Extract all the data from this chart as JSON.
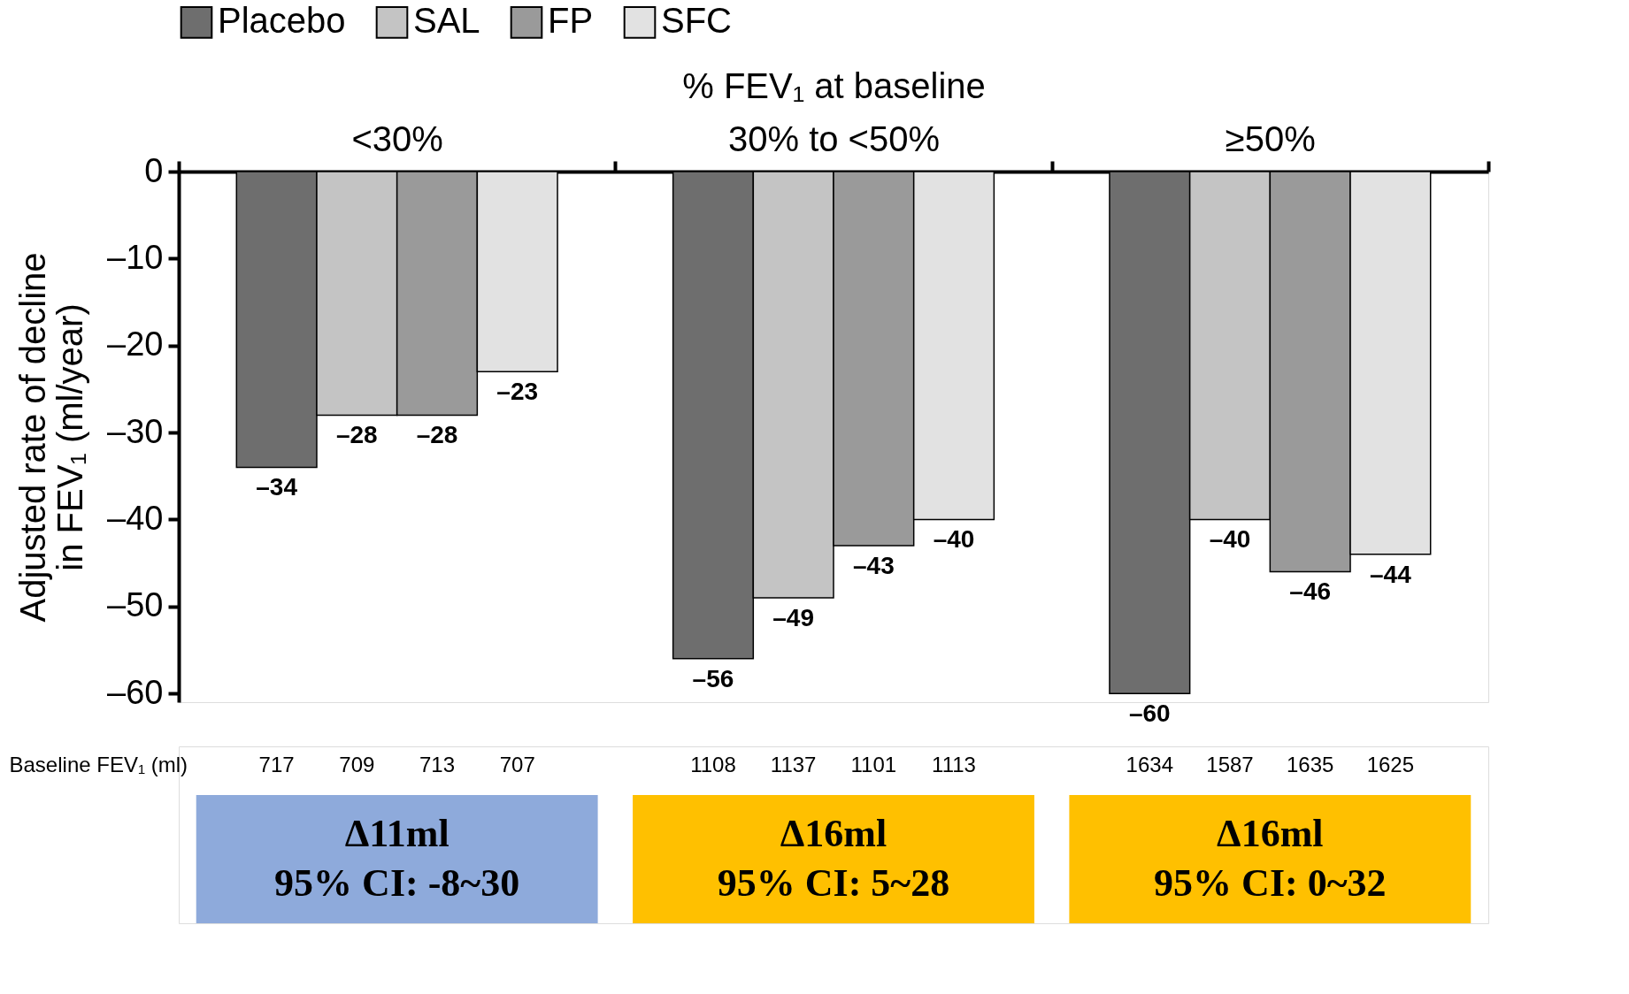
{
  "chart_data": {
    "type": "bar",
    "xlabel": "% FEV₁ at baseline",
    "ylabel": "Adjusted rate of decline in FEV₁ (ml/year)",
    "categories": [
      "<30%",
      "30% to <50%",
      "≥50%"
    ],
    "series": [
      {
        "name": "Placebo",
        "color": "#6e6e6e",
        "values": [
          -34,
          -56,
          -60
        ],
        "value_labels": [
          "–34",
          "–56",
          "–60"
        ]
      },
      {
        "name": "SAL",
        "color": "#c4c4c4",
        "values": [
          -28,
          -49,
          -40
        ],
        "value_labels": [
          "–28",
          "–49",
          "–40"
        ]
      },
      {
        "name": "FP",
        "color": "#9a9a9a",
        "values": [
          -28,
          -43,
          -46
        ],
        "value_labels": [
          "–28",
          "–43",
          "–46"
        ]
      },
      {
        "name": "SFC",
        "color": "#e2e2e2",
        "values": [
          -23,
          -40,
          -44
        ],
        "value_labels": [
          "–23",
          "–40",
          "–44"
        ]
      }
    ],
    "ylim": [
      -61,
      0
    ],
    "yticks": [
      0,
      {
        "value": -10,
        "label": "–10"
      },
      {
        "value": -20,
        "label": "–20"
      },
      {
        "value": -30,
        "label": "–30"
      },
      {
        "value": -40,
        "label": "–40"
      },
      {
        "value": -50,
        "label": "–50"
      },
      {
        "value": -60,
        "label": "–60"
      }
    ],
    "legend": "top",
    "grid": false,
    "annotations": [
      "Baseline FEV₁ (ml)",
      "717",
      "709",
      "713",
      "707",
      "1108",
      "1137",
      "1101",
      "1113",
      "1634",
      "1587",
      "1635",
      "1625",
      "Δ11ml\n95% CI: -8~30",
      "Δ16ml\n95% CI: 5~28",
      "Δ16ml\n95% CI: 0~32"
    ]
  }
}
